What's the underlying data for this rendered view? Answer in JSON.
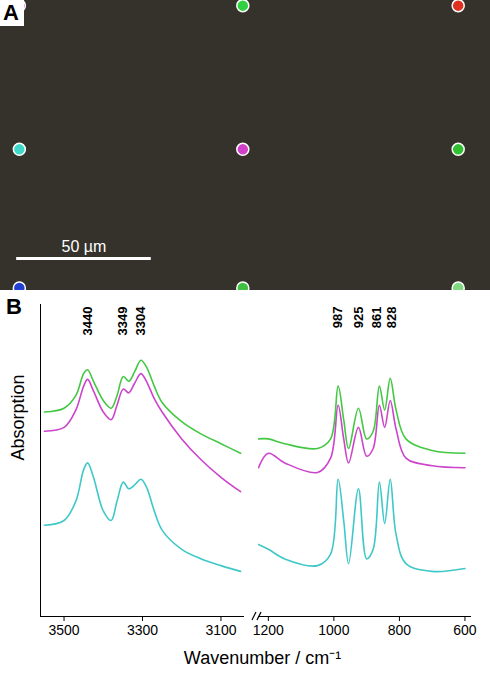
{
  "chart_data": [
    {
      "panel": "A",
      "type": "scatter",
      "xlim": [
        0,
        182
      ],
      "ylim": [
        0,
        113
      ],
      "tick_labels": false,
      "marker": "circle",
      "x": [
        7,
        90,
        170,
        7,
        90,
        170,
        7,
        90,
        170
      ],
      "values": [
        2,
        2,
        2,
        58,
        58,
        58,
        112,
        112,
        112
      ],
      "colors": [
        "#e040e0",
        "#30d040",
        "#e03020",
        "#40d8c8",
        "#d040c8",
        "#30c030",
        "#2040d0",
        "#40c040",
        "#80d880"
      ],
      "scale_bar": {
        "value": 50,
        "label": "50 µm"
      }
    },
    {
      "panel": "B",
      "type": "line",
      "y_label": "Absorption",
      "x_label": "Wavenumber / cm⁻¹",
      "ylim": [
        0,
        13
      ],
      "tick_labels": "x",
      "x_ranges": [
        {
          "xlim": [
            3560,
            3040
          ],
          "xticks": [
            3500,
            3300,
            3100
          ],
          "x": [
            3550,
            3500,
            3470,
            3450,
            3440,
            3425,
            3400,
            3380,
            3365,
            3349,
            3335,
            3320,
            3304,
            3290,
            3270,
            3250,
            3200,
            3150,
            3100,
            3050
          ],
          "series": [
            {
              "color": "#40c8c8",
              "values": [
                3.8,
                4.0,
                4.8,
                6.12,
                6.4,
                5.8,
                4.4,
                4.0,
                4.8,
                5.6,
                5.32,
                5.48,
                5.72,
                5.4,
                4.4,
                3.6,
                2.8,
                2.4,
                2.12,
                1.88
              ]
            },
            {
              "color": "#cc44cc",
              "values": [
                7.72,
                7.88,
                8.6,
                9.6,
                9.88,
                9.4,
                8.52,
                8.2,
                8.8,
                9.48,
                9.32,
                9.72,
                10.12,
                9.8,
                9.08,
                8.52,
                7.4,
                6.52,
                5.8,
                5.2
              ]
            },
            {
              "color": "#44c844",
              "values": [
                8.52,
                8.68,
                9.2,
                10.12,
                10.28,
                9.8,
                9.0,
                8.68,
                9.2,
                10.0,
                9.8,
                10.2,
                10.68,
                10.4,
                9.6,
                8.92,
                8.12,
                7.6,
                7.2,
                6.8
              ]
            }
          ],
          "annotations": [
            {
              "text": "3440",
              "x": 3440
            },
            {
              "text": "3349",
              "x": 3349
            },
            {
              "text": "3304",
              "x": 3304
            }
          ]
        },
        {
          "xlim": [
            1230,
            580
          ],
          "xticks": [
            1200,
            1000,
            800,
            600
          ],
          "x": [
            1230,
            1200,
            1150,
            1050,
            1010,
            987,
            970,
            955,
            925,
            900,
            880,
            861,
            845,
            828,
            810,
            780,
            700,
            600
          ],
          "series": [
            {
              "color": "#40c8c8",
              "values": [
                3.0,
                2.8,
                2.4,
                2.12,
                2.6,
                5.72,
                4.0,
                2.2,
                5.32,
                2.4,
                2.8,
                5.6,
                3.88,
                5.72,
                3.4,
                2.2,
                1.88,
                2.0
              ]
            },
            {
              "color": "#cc44cc",
              "values": [
                6.2,
                6.8,
                6.4,
                6.0,
                6.6,
                8.8,
                7.4,
                6.4,
                7.88,
                6.68,
                7.0,
                8.8,
                7.88,
                9.0,
                7.8,
                6.6,
                6.28,
                6.2
              ]
            },
            {
              "color": "#44c844",
              "values": [
                7.4,
                7.4,
                7.2,
                7.0,
                7.4,
                9.6,
                8.2,
                7.0,
                8.68,
                7.4,
                7.72,
                9.6,
                8.6,
                9.92,
                8.6,
                7.4,
                6.92,
                6.8
              ]
            }
          ],
          "annotations": [
            {
              "text": "987",
              "x": 987
            },
            {
              "text": "925",
              "x": 925
            },
            {
              "text": "861",
              "x": 861
            },
            {
              "text": "828",
              "x": 828
            }
          ]
        }
      ]
    }
  ]
}
